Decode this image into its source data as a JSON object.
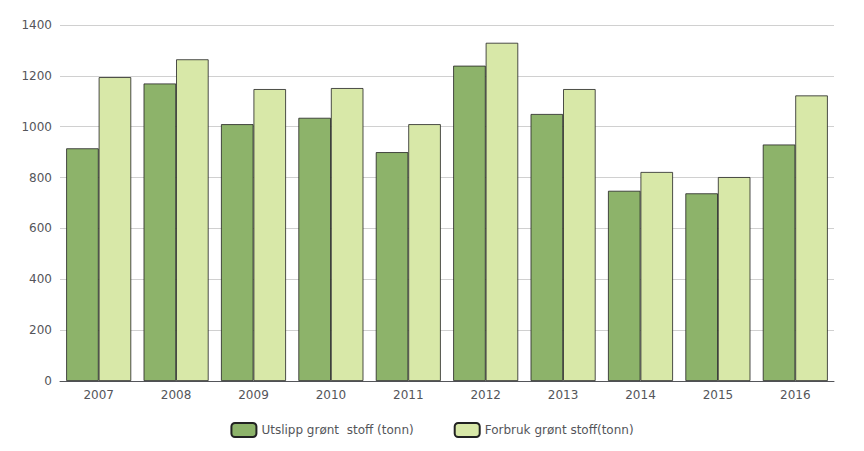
{
  "chart_data": {
    "type": "bar",
    "categories": [
      "2007",
      "2008",
      "2009",
      "2010",
      "2011",
      "2012",
      "2013",
      "2014",
      "2015",
      "2016"
    ],
    "series": [
      {
        "name": "Utslipp grønt  stoff (tonn)",
        "color": "#8db36a",
        "values": [
          915,
          1170,
          1010,
          1035,
          900,
          1240,
          1050,
          748,
          738,
          930
        ]
      },
      {
        "name": "Forbruk grønt stoff(tonn)",
        "color": "#d8e8a8",
        "values": [
          1195,
          1265,
          1148,
          1152,
          1010,
          1330,
          1148,
          822,
          802,
          1123
        ]
      }
    ],
    "ylim": [
      0,
      1400
    ],
    "yticks": [
      0,
      200,
      400,
      600,
      800,
      1000,
      1200,
      1400
    ],
    "grid": true,
    "legend": "bottom"
  }
}
